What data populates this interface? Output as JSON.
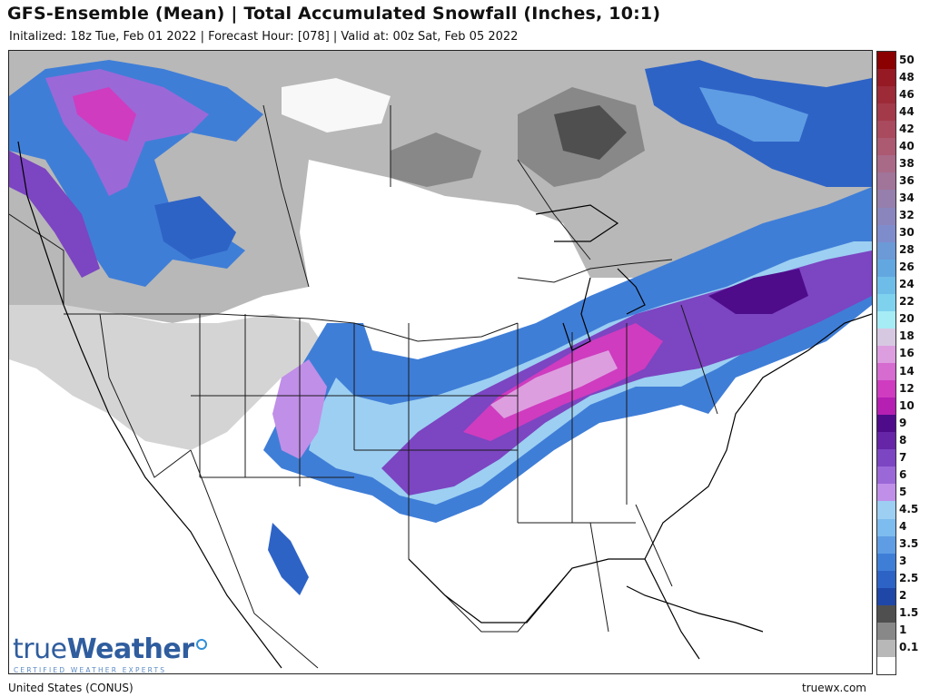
{
  "header": {
    "title": "GFS-Ensemble (Mean) | Total Accumulated Snowfall (Inches, 10:1)",
    "subtitle": "Initalized: 18z Tue, Feb 01 2022 | Forecast Hour: [078] | Valid at: 00z Sat, Feb 05 2022"
  },
  "logo": {
    "brand_light": "true",
    "brand_bold": "Weather",
    "tagline": "CERTIFIED WEATHER EXPERTS"
  },
  "footer": {
    "region": "United States (CONUS)",
    "site": "truewx.com"
  },
  "legend": [
    {
      "label": "50",
      "color": "#8b0000"
    },
    {
      "label": "48",
      "color": "#951a24"
    },
    {
      "label": "46",
      "color": "#9c2a37"
    },
    {
      "label": "44",
      "color": "#a33a4a"
    },
    {
      "label": "42",
      "color": "#a94a5e"
    },
    {
      "label": "40",
      "color": "#ab5a72"
    },
    {
      "label": "38",
      "color": "#a96a88"
    },
    {
      "label": "36",
      "color": "#a1749a"
    },
    {
      "label": "34",
      "color": "#967fac"
    },
    {
      "label": "32",
      "color": "#8a86bd"
    },
    {
      "label": "30",
      "color": "#7f8ccc"
    },
    {
      "label": "28",
      "color": "#6c9ad6"
    },
    {
      "label": "26",
      "color": "#63a7e0"
    },
    {
      "label": "24",
      "color": "#6ebde8"
    },
    {
      "label": "22",
      "color": "#7fd2ee"
    },
    {
      "label": "20",
      "color": "#a6ecf5"
    },
    {
      "label": "18",
      "color": "#d7c8e2"
    },
    {
      "label": "16",
      "color": "#dd9ee0"
    },
    {
      "label": "14",
      "color": "#d66bd0"
    },
    {
      "label": "12",
      "color": "#cf3cbf"
    },
    {
      "label": "10",
      "color": "#b51fb2"
    },
    {
      "label": "9",
      "color": "#4e0c8a"
    },
    {
      "label": "8",
      "color": "#6525a6"
    },
    {
      "label": "7",
      "color": "#7c45c2"
    },
    {
      "label": "6",
      "color": "#9b68d8"
    },
    {
      "label": "5",
      "color": "#c08fe8"
    },
    {
      "label": "4.5",
      "color": "#9ccff2"
    },
    {
      "label": "4",
      "color": "#7dbcee"
    },
    {
      "label": "3.5",
      "color": "#5e9de3"
    },
    {
      "label": "3",
      "color": "#3f7ed7"
    },
    {
      "label": "2.5",
      "color": "#2e63c6"
    },
    {
      "label": "2",
      "color": "#1f47a8"
    },
    {
      "label": "1.5",
      "color": "#4f4f4f"
    },
    {
      "label": "1",
      "color": "#888888"
    },
    {
      "label": "0.1",
      "color": "#b8b8b8"
    },
    {
      "label": "",
      "color": "#ffffff"
    }
  ]
}
